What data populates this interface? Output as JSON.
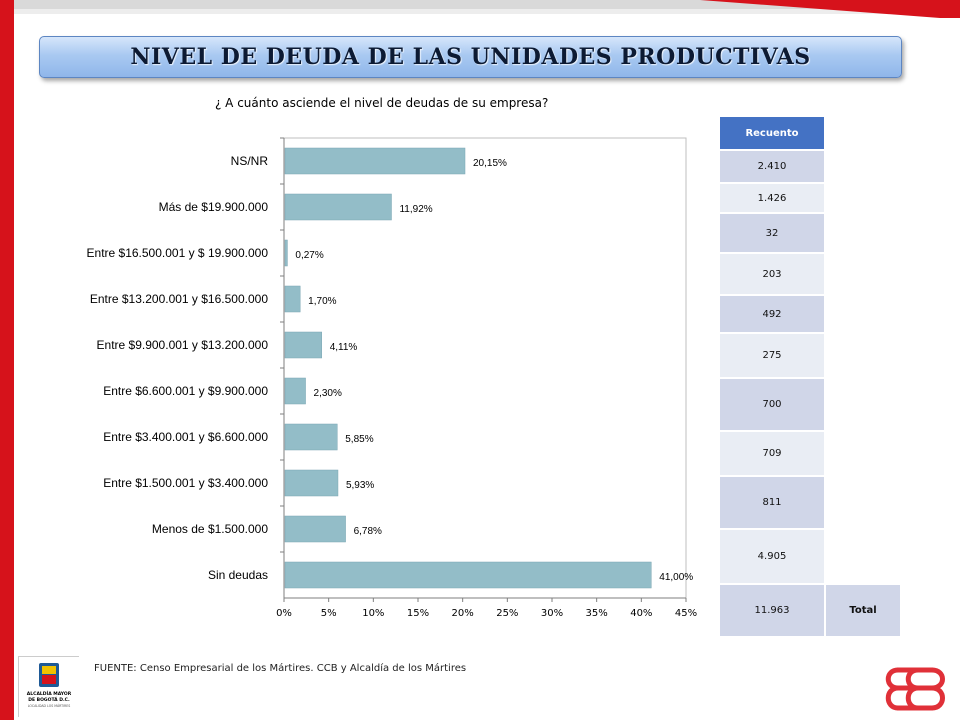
{
  "title": "NIVEL DE DEUDA DE LAS UNIDADES PRODUCTIVAS",
  "question": "¿ A cuánto asciende el nivel de deudas de su empresa?",
  "colors": {
    "accent": "#d6121b",
    "bar": "#93bdc8",
    "table_header": "#4472c4",
    "table_cell": "#d0d6e8"
  },
  "chart_data": {
    "type": "bar",
    "orientation": "horizontal",
    "categories": [
      "NS/NR",
      "Más de $19.900.000",
      "Entre $16.500.001 y $ 19.900.000",
      "Entre $13.200.001 y $16.500.000",
      "Entre $9.900.001 y $13.200.000",
      "Entre $6.600.001 y $9.900.000",
      "Entre $3.400.001 y $6.600.000",
      "Entre $1.500.001 y $3.400.000",
      "Menos de $1.500.000",
      "Sin deudas"
    ],
    "values": [
      20.15,
      11.92,
      0.27,
      1.7,
      4.11,
      2.3,
      5.85,
      5.93,
      6.78,
      41.0
    ],
    "value_labels": [
      "20,15%",
      "11,92%",
      "0,27%",
      "1,70%",
      "4,11%",
      "2,30%",
      "5,85%",
      "5,93%",
      "6,78%",
      "41,00%"
    ],
    "xlim": [
      0,
      45
    ],
    "x_ticks": [
      "0%",
      "5%",
      "10%",
      "15%",
      "20%",
      "25%",
      "30%",
      "35%",
      "40%",
      "45%"
    ]
  },
  "table": {
    "header": "Recuento",
    "counts": [
      "2.410",
      "1.426",
      "32",
      "203",
      "492",
      "275",
      "700",
      "709",
      "811",
      "4.905"
    ],
    "total_value": "11.963",
    "total_label": "Total"
  },
  "footer": {
    "source": "FUENTE:  Censo Empresarial de los Mártires. CCB y Alcaldía de los Mártires",
    "logo_text": [
      "ALCALDÍA MAYOR",
      "DE BOGOTÁ D.C.",
      "LOCALIDAD LOS MÁRTIRES"
    ]
  }
}
